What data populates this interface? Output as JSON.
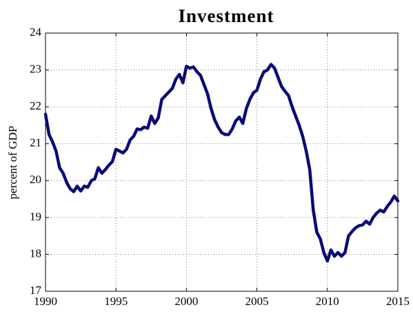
{
  "chart_data": {
    "type": "line",
    "title": "Investment",
    "y_label": "percent of GDP",
    "xlim": [
      1990,
      2015
    ],
    "xticks": [
      1990,
      1995,
      2000,
      2005,
      2010,
      2015
    ],
    "ylim": [
      17,
      24
    ],
    "yticks": [
      17,
      18,
      19,
      20,
      21,
      22,
      23,
      24
    ],
    "grid": true,
    "x": [
      1990,
      1990.25,
      1990.5,
      1990.75,
      1991,
      1991.25,
      1991.5,
      1991.75,
      1992,
      1992.25,
      1992.5,
      1992.75,
      1993,
      1993.25,
      1993.5,
      1993.75,
      1994,
      1994.25,
      1994.5,
      1994.75,
      1995,
      1995.25,
      1995.5,
      1995.75,
      1996,
      1996.25,
      1996.5,
      1996.75,
      1997,
      1997.25,
      1997.5,
      1997.75,
      1998,
      1998.25,
      1998.5,
      1998.75,
      1999,
      1999.25,
      1999.5,
      1999.75,
      2000,
      2000.25,
      2000.5,
      2000.75,
      2001,
      2001.25,
      2001.5,
      2001.75,
      2002,
      2002.25,
      2002.5,
      2002.75,
      2003,
      2003.25,
      2003.5,
      2003.75,
      2004,
      2004.25,
      2004.5,
      2004.75,
      2005,
      2005.25,
      2005.5,
      2005.75,
      2006,
      2006.25,
      2006.5,
      2006.75,
      2007,
      2007.25,
      2007.5,
      2007.75,
      2008,
      2008.25,
      2008.5,
      2008.75,
      2009,
      2009.25,
      2009.5,
      2009.75,
      2010,
      2010.25,
      2010.5,
      2010.75,
      2011,
      2011.25,
      2011.5,
      2011.75,
      2012,
      2012.25,
      2012.5,
      2012.75,
      2013,
      2013.25,
      2013.5,
      2013.75,
      2014,
      2014.25,
      2014.5,
      2014.75,
      2015
    ],
    "series": [
      {
        "name": "Investment",
        "color": "#0a0a78",
        "values": [
          21.8,
          21.25,
          21.05,
          20.8,
          20.35,
          20.2,
          19.95,
          19.78,
          19.7,
          19.85,
          19.72,
          19.85,
          19.82,
          20.0,
          20.05,
          20.35,
          20.2,
          20.3,
          20.42,
          20.52,
          20.85,
          20.8,
          20.75,
          20.85,
          21.1,
          21.2,
          21.4,
          21.38,
          21.45,
          21.42,
          21.75,
          21.55,
          21.7,
          22.2,
          22.3,
          22.4,
          22.5,
          22.75,
          22.88,
          22.65,
          23.1,
          23.05,
          23.08,
          22.95,
          22.85,
          22.6,
          22.35,
          21.95,
          21.65,
          21.45,
          21.3,
          21.25,
          21.25,
          21.4,
          21.62,
          21.72,
          21.55,
          21.95,
          22.2,
          22.38,
          22.45,
          22.75,
          22.95,
          23.0,
          23.15,
          23.05,
          22.8,
          22.55,
          22.42,
          22.3,
          22.0,
          21.75,
          21.5,
          21.2,
          20.8,
          20.3,
          19.2,
          18.6,
          18.42,
          18.05,
          17.82,
          18.12,
          17.95,
          18.05,
          17.95,
          18.05,
          18.5,
          18.62,
          18.72,
          18.78,
          18.8,
          18.9,
          18.82,
          19.0,
          19.12,
          19.2,
          19.15,
          19.3,
          19.42,
          19.58,
          19.45
        ]
      }
    ]
  }
}
